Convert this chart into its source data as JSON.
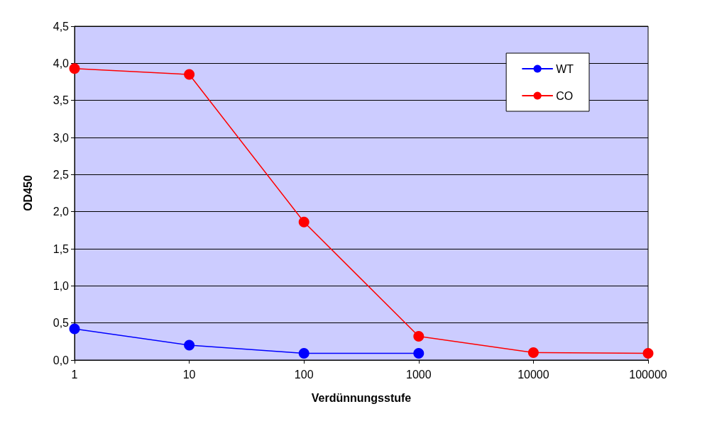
{
  "chart_data": {
    "type": "line",
    "xlabel": "Verdünnungsstufe",
    "ylabel": "OD450",
    "categories": [
      "1",
      "10",
      "100",
      "1000",
      "10000",
      "100000"
    ],
    "series": [
      {
        "name": "WT",
        "color": "#0000ff",
        "values": [
          0.42,
          0.2,
          0.09,
          0.09,
          null,
          null
        ]
      },
      {
        "name": "CO",
        "color": "#ff0000",
        "values": [
          3.93,
          3.85,
          1.86,
          0.32,
          0.1,
          0.09
        ]
      }
    ],
    "ylim": [
      0,
      4.5
    ],
    "yticks": [
      {
        "value": 0,
        "label": "0,0"
      },
      {
        "value": 0.5,
        "label": "0,5"
      },
      {
        "value": 1,
        "label": "1,0"
      },
      {
        "value": 1.5,
        "label": "1,5"
      },
      {
        "value": 2,
        "label": "2,0"
      },
      {
        "value": 2.5,
        "label": "2,5"
      },
      {
        "value": 3,
        "label": "3,0"
      },
      {
        "value": 3.5,
        "label": "3,5"
      },
      {
        "value": 4,
        "label": "4,0"
      },
      {
        "value": 4.5,
        "label": "4,5"
      }
    ],
    "grid": "y",
    "legend": "top right",
    "marker": "circle",
    "line_style": "solid"
  }
}
